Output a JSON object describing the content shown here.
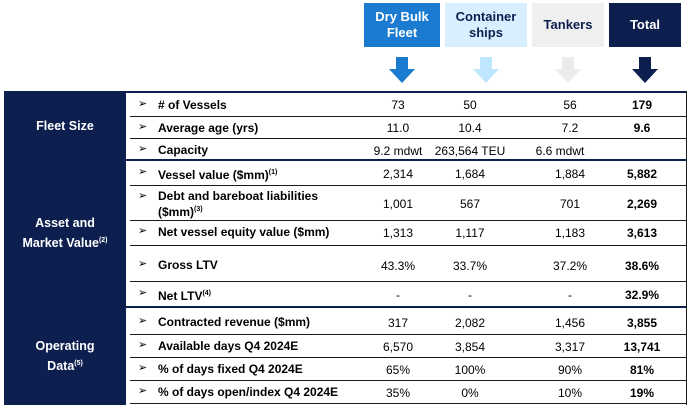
{
  "columns": [
    {
      "label": "Dry Bulk Fleet",
      "bg": "#1a7bd0",
      "fg": "#ffffff",
      "arrow": "#1a7bd0"
    },
    {
      "label": "Container ships",
      "bg": "#d7efff",
      "fg": "#0d1f4f",
      "arrow": "#bfe6ff"
    },
    {
      "label": "Tankers",
      "bg": "#efefef",
      "fg": "#0d1f4f",
      "arrow": "#ececec"
    },
    {
      "label": "Total",
      "bg": "#0d1f4f",
      "fg": "#ffffff",
      "arrow": "#0d1f4f"
    }
  ],
  "sections": [
    {
      "title": "Fleet Size",
      "sup": "",
      "rows": [
        {
          "label": "# of Vessels",
          "sup": "",
          "tail": "",
          "values": [
            "73",
            "50",
            "56",
            "179"
          ]
        },
        {
          "label": "Average age (yrs)",
          "sup": "",
          "tail": "",
          "values": [
            "11.0",
            "10.4",
            "7.2",
            "9.6"
          ]
        },
        {
          "label": "Capacity",
          "sup": "",
          "tail": "",
          "values": [
            "9.2 mdwt",
            "263,564 TEU",
            "6.6 mdwt",
            ""
          ]
        }
      ]
    },
    {
      "title": "Asset and Market Value",
      "sup": "(2)",
      "rows": [
        {
          "label": "Vessel value ($mm)",
          "sup": "(1)",
          "tail": "",
          "values": [
            "2,314",
            "1,684",
            "1,884",
            "5,882"
          ]
        },
        {
          "label": "Debt and bareboat liabilities ($mm)",
          "sup": "(3)",
          "tail": "",
          "values": [
            "1,001",
            "567",
            "701",
            "2,269"
          ]
        },
        {
          "label": "Net vessel equity value ($mm)",
          "sup": "",
          "tail": "",
          "values": [
            "1,313",
            "1,117",
            "1,183",
            "3,613"
          ]
        },
        {
          "label": "Gross LTV",
          "sup": "",
          "tail": "",
          "values": [
            "43.3%",
            "33.7%",
            "37.2%",
            "38.6%"
          ]
        },
        {
          "label": "Net LTV",
          "sup": "(4)",
          "tail": "",
          "values": [
            "-",
            "-",
            "-",
            "32.9%"
          ]
        }
      ]
    },
    {
      "title": "Operating Data",
      "sup": "(5)",
      "rows": [
        {
          "label": "Contracted revenue ($mm)",
          "sup": "",
          "tail": "",
          "values": [
            "317",
            "2,082",
            "1,456",
            "3,855"
          ]
        },
        {
          "label": "Available days Q4 2024E",
          "sup": "",
          "tail": "",
          "values": [
            "6,570",
            "3,854",
            "3,317",
            "13,741"
          ]
        },
        {
          "label": "% of days fixed Q4 2024E",
          "sup": "",
          "tail": "",
          "values": [
            "65%",
            "100%",
            "90%",
            "81%"
          ]
        },
        {
          "label": "% of days open/index Q4 2024E",
          "sup": "",
          "tail": "",
          "values": [
            "35%",
            "0%",
            "10%",
            "19%"
          ]
        }
      ]
    }
  ],
  "bullet_glyph": "➢"
}
